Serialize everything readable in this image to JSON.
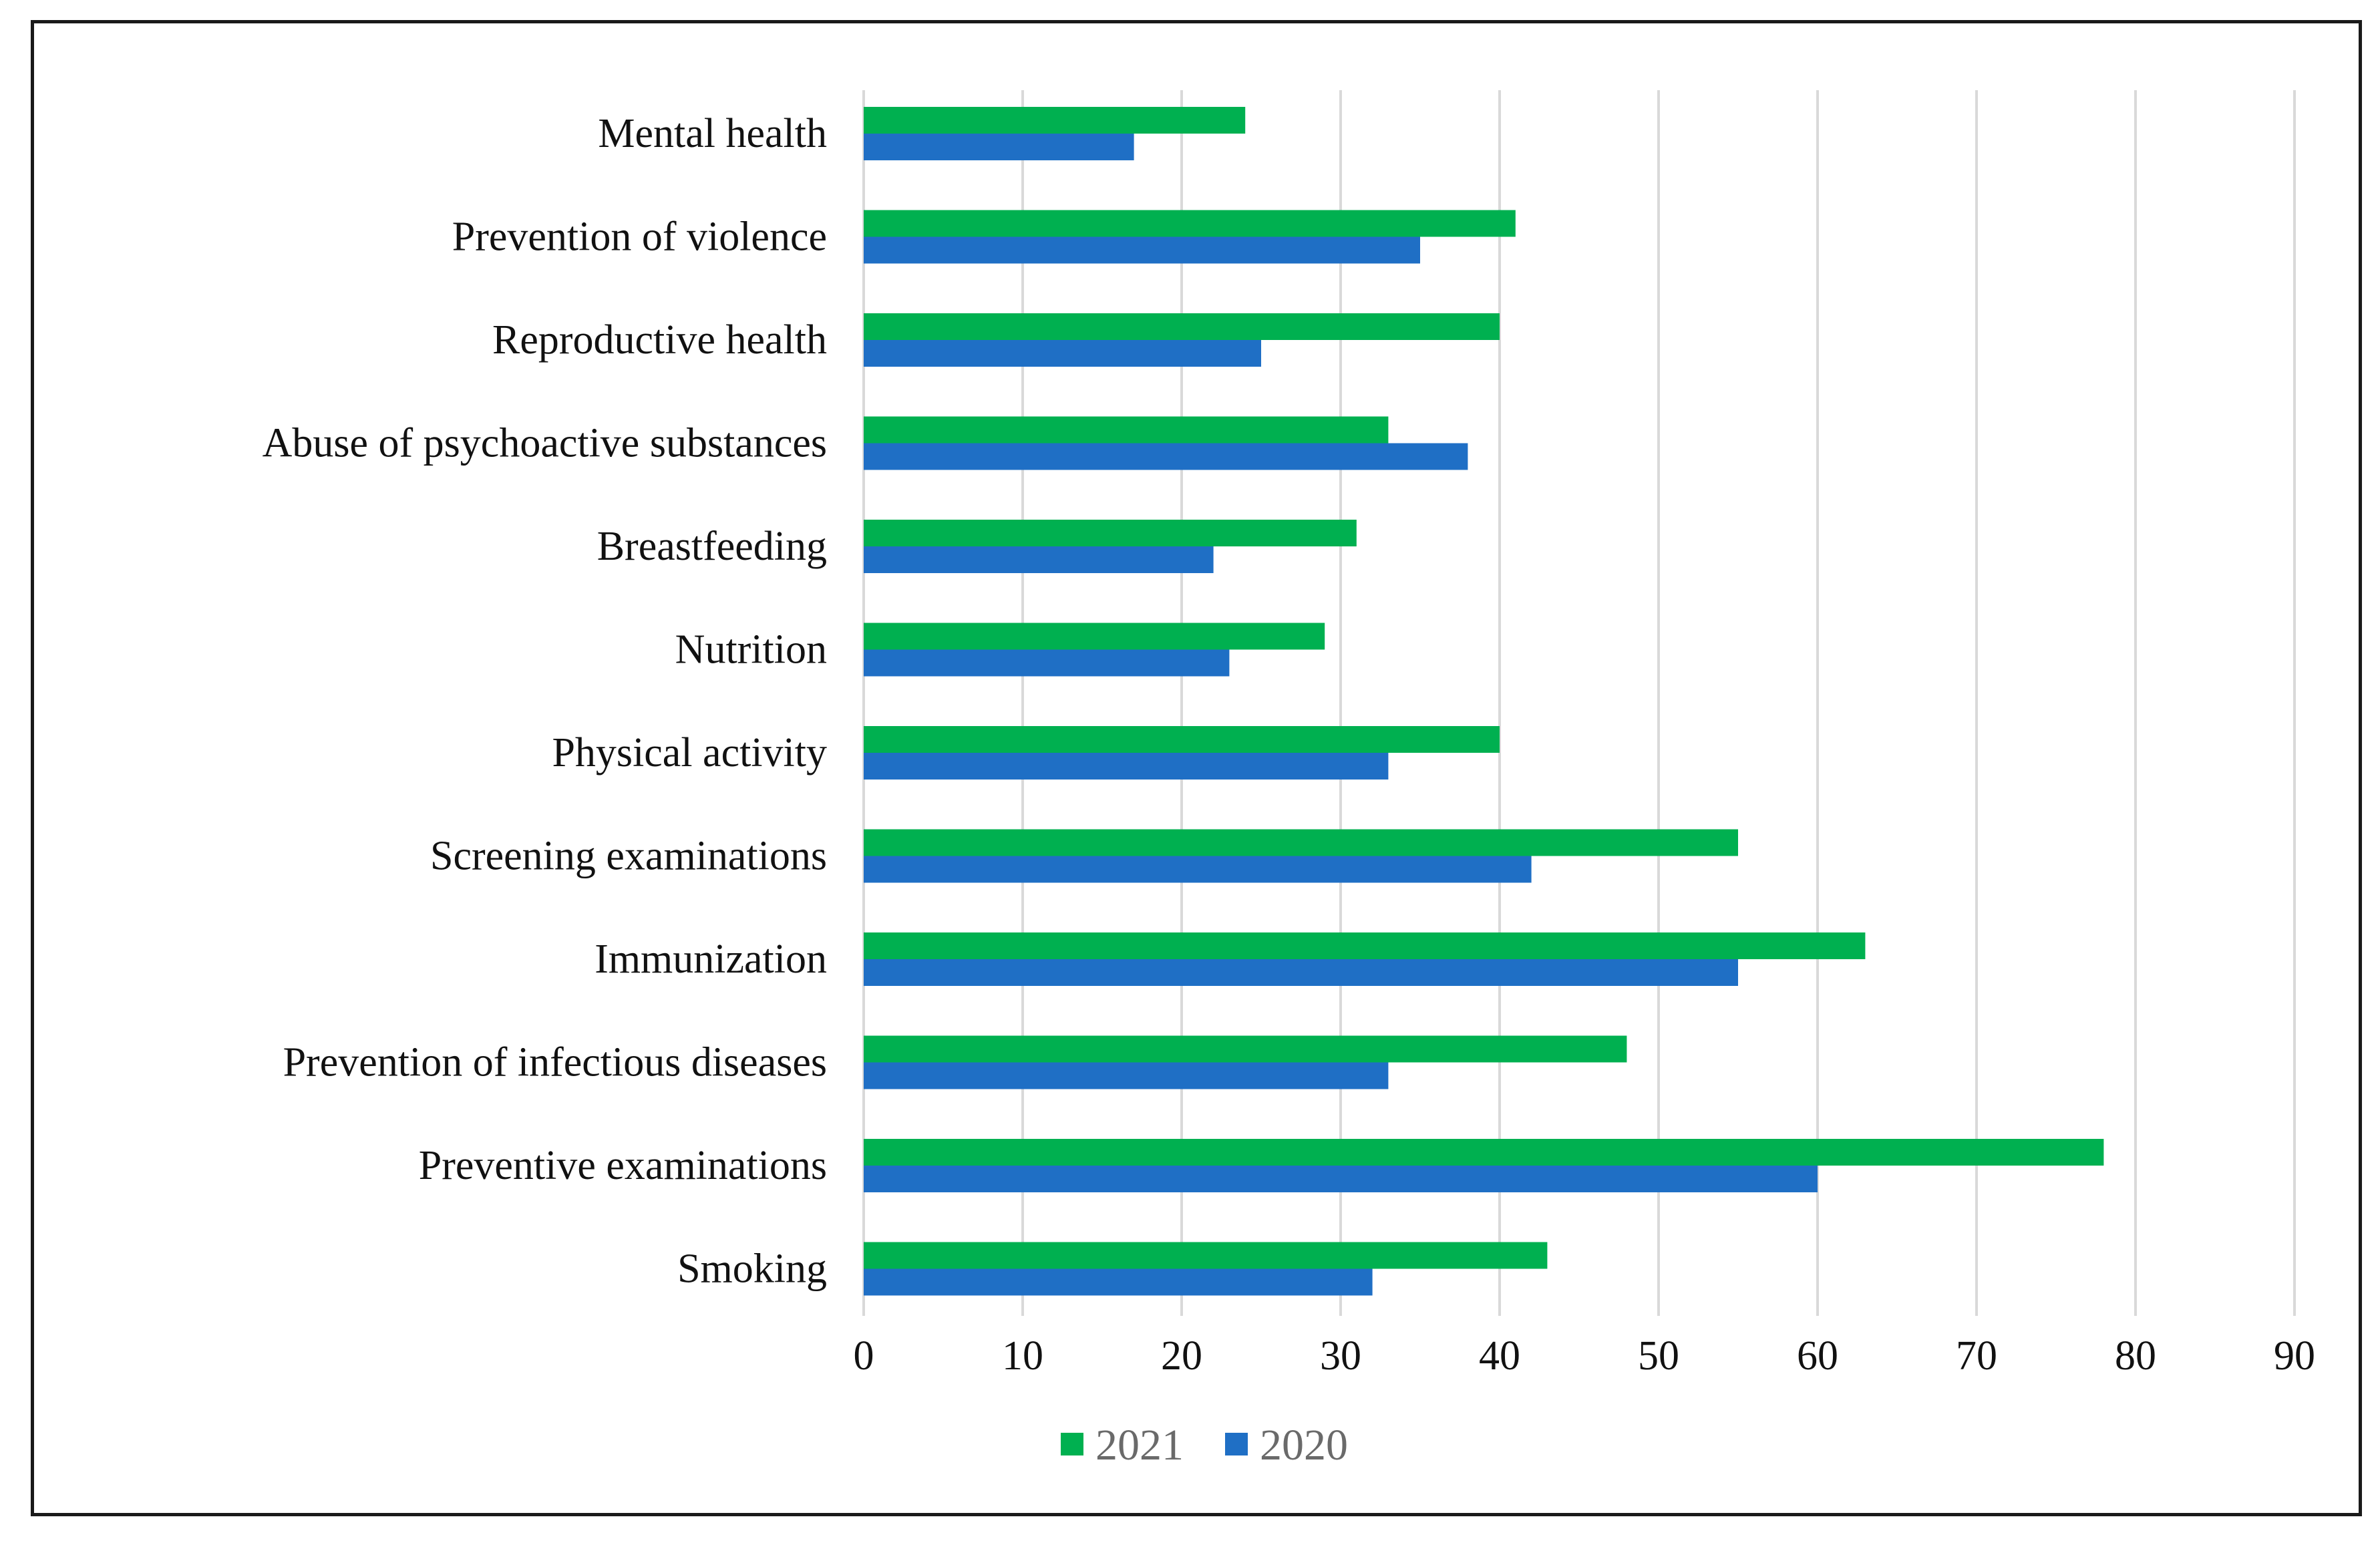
{
  "chart_data": {
    "type": "bar",
    "orientation": "horizontal",
    "title": "",
    "xlabel": "",
    "ylabel": "",
    "xlim": [
      0,
      90
    ],
    "ticks": [
      0,
      10,
      20,
      30,
      40,
      50,
      60,
      70,
      80,
      90
    ],
    "grid": true,
    "legend_position": "bottom",
    "categories": [
      "Mental health",
      "Prevention of violence",
      "Reproductive health",
      "Abuse of psychoactive substances",
      "Breastfeeding",
      "Nutrition",
      "Physical activity",
      "Screening examinations",
      "Immunization",
      "Prevention of infectious diseases",
      "Preventive examinations",
      "Smoking"
    ],
    "series": [
      {
        "name": "2021",
        "color": "#00b050",
        "values": [
          24,
          41,
          40,
          33,
          31,
          29,
          40,
          55,
          63,
          48,
          78,
          43
        ]
      },
      {
        "name": "2020",
        "color": "#1f6fc5",
        "values": [
          17,
          35,
          25,
          38,
          22,
          23,
          33,
          42,
          55,
          33,
          60,
          32
        ]
      }
    ]
  }
}
